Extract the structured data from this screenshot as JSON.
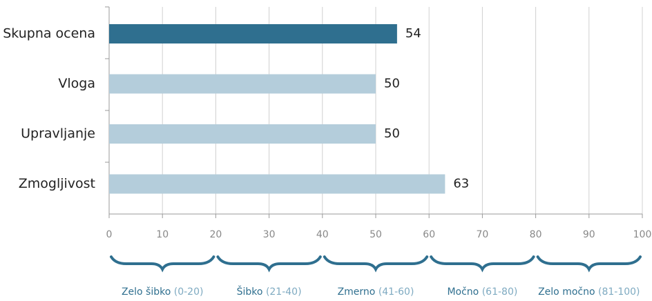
{
  "chart_data": {
    "type": "hbar",
    "categories": [
      "Skupna ocena",
      "Vloga",
      "Upravljanje",
      "Zmogljivost"
    ],
    "values": [
      54,
      50,
      50,
      63
    ],
    "colors": [
      "#2f6f8f",
      "#b4cddb",
      "#b4cddb",
      "#b4cddb"
    ],
    "xlim": [
      0,
      100
    ],
    "xticks": [
      0,
      10,
      20,
      30,
      40,
      50,
      60,
      70,
      80,
      90,
      100
    ],
    "grid": true,
    "bands": [
      {
        "name": "Zelo šibko",
        "range": "(0-20)",
        "from": 0,
        "to": 20
      },
      {
        "name": "Šibko",
        "range": "(21-40)",
        "from": 20,
        "to": 40
      },
      {
        "name": "Zmerno",
        "range": "(41-60)",
        "from": 40,
        "to": 60
      },
      {
        "name": "Močno",
        "range": "(61-80)",
        "from": 60,
        "to": 80
      },
      {
        "name": "Zelo močno",
        "range": "(81-100)",
        "from": 80,
        "to": 100
      }
    ]
  }
}
